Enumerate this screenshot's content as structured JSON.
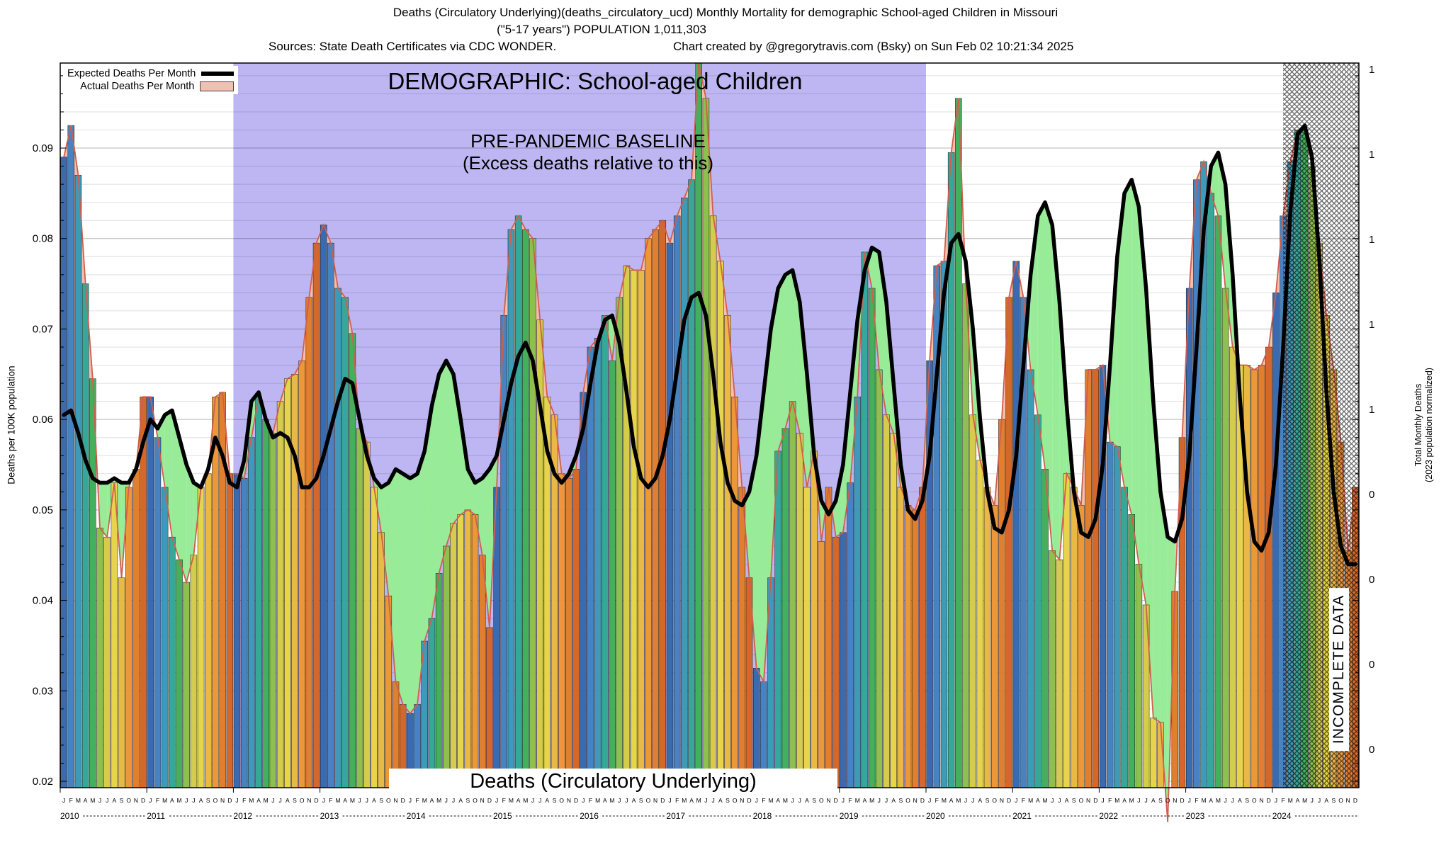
{
  "header": {
    "title_line1": "Deaths (Circulatory Underlying)(deaths_circulatory_ucd) Monthly Mortality for demographic School-aged Children in Missouri",
    "title_line2": "(\"5-17 years\") POPULATION 1,011,303",
    "sources": "Sources: State Death Certificates via CDC WONDER.",
    "credit": "Chart created by @gregorytravis.com (Bsky) on Sun Feb 02 10:21:34 2025"
  },
  "legend": {
    "expected_label": "Expected Deaths Per Month",
    "actual_label": "Actual Deaths Per Month"
  },
  "overlays": {
    "demographic": "DEMOGRAPHIC: School-aged Children",
    "baseline_line1": "PRE-PANDEMIC BASELINE",
    "baseline_line2": "(Excess deaths relative to this)",
    "bottom_label": "Deaths (Circulatory Underlying)",
    "incomplete": "INCOMPLETE DATA",
    "ylabel_left": "Deaths per 100K population",
    "ylabel_right_line1": "Total Monthly Deaths",
    "ylabel_right_line2": "(2023 population normalized)"
  },
  "chart_data": {
    "type": "bar",
    "title": "DEMOGRAPHIC: School-aged Children",
    "xlabel": "",
    "ylabel": "Deaths per 100K population",
    "y2label": "Total Monthly Deaths (2023 population normalized)",
    "x_unit": "month",
    "x_range": "2010-01 to 2024-12",
    "ylim": [
      0.0193,
      0.0994
    ],
    "grid": true,
    "legend_position": "top-left",
    "years": [
      2010,
      2011,
      2012,
      2013,
      2014,
      2015,
      2016,
      2017,
      2018,
      2019,
      2020,
      2021,
      2022,
      2023,
      2024
    ],
    "month_letters": [
      "J",
      "F",
      "M",
      "A",
      "M",
      "J",
      "J",
      "A",
      "S",
      "O",
      "N",
      "D"
    ],
    "y_ticks_left": [
      "0.02",
      "0.03",
      "0.04",
      "0.05",
      "0.06",
      "0.07",
      "0.08",
      "0.09"
    ],
    "y_ticks_right": [
      "1",
      "1",
      "1",
      "1",
      "1",
      "0",
      "0",
      "0",
      "0"
    ],
    "baseline_region": {
      "label": "PRE-PANDEMIC BASELINE (Excess deaths relative to this)",
      "from": "2012-01",
      "to": "2020-01",
      "from_index": 24,
      "to_index": 120,
      "color": "#bdb6f2"
    },
    "incomplete_region": {
      "label": "INCOMPLETE DATA",
      "from": "2024-02",
      "to": "2024-12",
      "from_index": 169.5
    },
    "bar_palette_by_month": [
      "#3a6ab0",
      "#4783c0",
      "#3d9ab8",
      "#35a89a",
      "#45b05c",
      "#8ec04d",
      "#d4cc4a",
      "#e6d44c",
      "#eab844",
      "#ec9838",
      "#e07f2e",
      "#d4682a"
    ],
    "colors": {
      "expected_line": "#000000",
      "actual_line": "#cf5f4e",
      "excess_fill": "#f5bfae",
      "deficit_fill": "#98ec98",
      "legend_actual_fill": "#f2c0b2"
    },
    "series": [
      {
        "name": "Actual Deaths Per Month",
        "style": "bars+thin salmon line",
        "source": "series_actual_by_year"
      },
      {
        "name": "Expected Deaths Per Month",
        "style": "thick black line",
        "source": "series_expected_by_year"
      }
    ],
    "series_actual_by_year": {
      "2010": [
        0.089,
        0.0925,
        0.087,
        0.075,
        0.0645,
        0.048,
        0.047,
        0.053,
        0.0425,
        0.0525,
        0.0545,
        0.0625
      ],
      "2011": [
        0.0625,
        0.058,
        0.0525,
        0.047,
        0.0445,
        0.042,
        0.045,
        0.0525,
        0.054,
        0.0625,
        0.063,
        0.054
      ],
      "2012": [
        0.054,
        0.0535,
        0.058,
        0.0625,
        0.06,
        0.0585,
        0.062,
        0.0645,
        0.065,
        0.0665,
        0.0735,
        0.0795
      ],
      "2013": [
        0.0815,
        0.0795,
        0.0745,
        0.0735,
        0.0695,
        0.059,
        0.0575,
        0.0525,
        0.0475,
        0.0405,
        0.031,
        0.0285
      ],
      "2014": [
        0.0275,
        0.0285,
        0.0355,
        0.038,
        0.043,
        0.046,
        0.0485,
        0.0495,
        0.05,
        0.0495,
        0.045,
        0.037
      ],
      "2015": [
        0.0525,
        0.0715,
        0.081,
        0.0825,
        0.081,
        0.08,
        0.071,
        0.0625,
        0.0605,
        0.054,
        0.0535,
        0.0545
      ],
      "2016": [
        0.063,
        0.068,
        0.069,
        0.0715,
        0.0665,
        0.0735,
        0.077,
        0.0765,
        0.0765,
        0.08,
        0.081,
        0.082
      ],
      "2017": [
        0.0795,
        0.0825,
        0.0845,
        0.0865,
        0.105,
        0.0955,
        0.0825,
        0.0775,
        0.0715,
        0.0625,
        0.0525,
        0.0425
      ],
      "2018": [
        0.0325,
        0.031,
        0.0425,
        0.0565,
        0.059,
        0.062,
        0.0585,
        0.0525,
        0.0565,
        0.0465,
        0.0525,
        0.047
      ],
      "2019": [
        0.0475,
        0.053,
        0.0625,
        0.0785,
        0.0745,
        0.0655,
        0.0605,
        0.0585,
        0.0525,
        0.0505,
        0.05,
        0.0525
      ],
      "2020": [
        0.0665,
        0.077,
        0.0775,
        0.0895,
        0.0955,
        0.075,
        0.0605,
        0.0555,
        0.0525,
        0.0505,
        0.06,
        0.0735
      ],
      "2021": [
        0.0775,
        0.0735,
        0.0655,
        0.0605,
        0.0545,
        0.0455,
        0.0445,
        0.054,
        0.0525,
        0.0505,
        0.0655,
        0.0655
      ],
      "2022": [
        0.066,
        0.0575,
        0.057,
        0.0525,
        0.0495,
        0.044,
        0.0395,
        0.027,
        0.0265,
        0.0155,
        0.041,
        0.058
      ],
      "2023": [
        0.0745,
        0.0865,
        0.0885,
        0.085,
        0.0825,
        0.0745,
        0.068,
        0.066,
        0.066,
        0.0655,
        0.066,
        0.068
      ],
      "2024": [
        0.074,
        0.0825,
        0.0885,
        0.092,
        0.092,
        0.088,
        0.0795,
        0.0715,
        0.0655,
        0.0575,
        0.0455,
        0.0525
      ]
    },
    "series_expected_by_year": {
      "2010": [
        0.0605,
        0.061,
        0.0585,
        0.0555,
        0.0535,
        0.053,
        0.053,
        0.0535,
        0.053,
        0.053,
        0.0545,
        0.0575
      ],
      "2011": [
        0.06,
        0.059,
        0.0605,
        0.061,
        0.058,
        0.055,
        0.053,
        0.0525,
        0.0545,
        0.058,
        0.056,
        0.053
      ],
      "2012": [
        0.0525,
        0.0555,
        0.062,
        0.063,
        0.06,
        0.058,
        0.0585,
        0.058,
        0.056,
        0.0525,
        0.0525,
        0.0535
      ],
      "2013": [
        0.056,
        0.059,
        0.062,
        0.0645,
        0.064,
        0.06,
        0.056,
        0.0535,
        0.0525,
        0.053,
        0.0545,
        0.054
      ],
      "2014": [
        0.0535,
        0.054,
        0.0565,
        0.0615,
        0.065,
        0.0665,
        0.065,
        0.06,
        0.0545,
        0.053,
        0.0535,
        0.0545
      ],
      "2015": [
        0.056,
        0.06,
        0.064,
        0.067,
        0.0685,
        0.0665,
        0.0615,
        0.0565,
        0.054,
        0.053,
        0.054,
        0.056
      ],
      "2016": [
        0.059,
        0.064,
        0.0685,
        0.071,
        0.0715,
        0.0685,
        0.063,
        0.057,
        0.0535,
        0.0525,
        0.0535,
        0.056
      ],
      "2017": [
        0.06,
        0.0655,
        0.071,
        0.0735,
        0.074,
        0.0715,
        0.065,
        0.0575,
        0.053,
        0.051,
        0.0505,
        0.052
      ],
      "2018": [
        0.056,
        0.063,
        0.07,
        0.0745,
        0.076,
        0.0765,
        0.073,
        0.065,
        0.056,
        0.051,
        0.0495,
        0.051
      ],
      "2019": [
        0.055,
        0.063,
        0.071,
        0.0765,
        0.079,
        0.0785,
        0.073,
        0.064,
        0.055,
        0.05,
        0.049,
        0.051
      ],
      "2020": [
        0.056,
        0.065,
        0.074,
        0.0795,
        0.0805,
        0.0775,
        0.07,
        0.06,
        0.052,
        0.048,
        0.0475,
        0.05
      ],
      "2021": [
        0.056,
        0.066,
        0.076,
        0.0825,
        0.084,
        0.0815,
        0.073,
        0.0615,
        0.052,
        0.0475,
        0.047,
        0.049
      ],
      "2022": [
        0.055,
        0.066,
        0.078,
        0.085,
        0.0865,
        0.0835,
        0.0745,
        0.062,
        0.052,
        0.047,
        0.0465,
        0.049
      ],
      "2023": [
        0.056,
        0.068,
        0.081,
        0.088,
        0.0895,
        0.086,
        0.076,
        0.0625,
        0.052,
        0.0465,
        0.0455,
        0.0475
      ],
      "2024": [
        0.055,
        0.068,
        0.083,
        0.0915,
        0.0925,
        0.089,
        0.078,
        0.063,
        0.052,
        0.046,
        0.044,
        0.044
      ]
    }
  }
}
